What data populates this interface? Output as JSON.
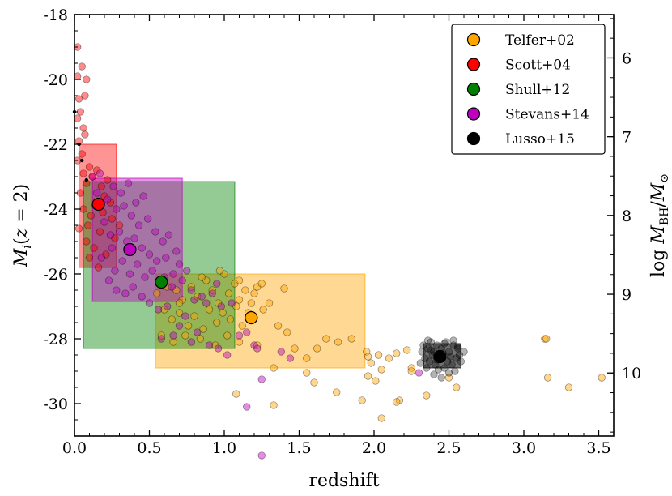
{
  "chart_data": {
    "type": "scatter",
    "xlabel": "redshift",
    "ylabel": "M_i(z = 2)",
    "ylabel_right": "log M_BH/M_sun",
    "xlim": [
      0,
      3.6
    ],
    "ylim": [
      -18,
      -31
    ],
    "right_ylim": [
      5.45,
      10.8
    ],
    "x_ticks": [
      0.0,
      0.5,
      1.0,
      1.5,
      2.0,
      2.5,
      3.0,
      3.5
    ],
    "x_tick_labels": [
      "0.0",
      "0.5",
      "1.0",
      "1.5",
      "2.0",
      "2.5",
      "3.0",
      "3.5"
    ],
    "y_ticks": [
      -18,
      -20,
      -22,
      -24,
      -26,
      -28,
      -30
    ],
    "y_tick_labels": [
      "-18",
      "-20",
      "-22",
      "-24",
      "-26",
      "-28",
      "-30"
    ],
    "right_ticks": [
      6,
      7,
      8,
      9,
      10
    ],
    "right_tick_labels": [
      "6",
      "7",
      "8",
      "9",
      "10"
    ],
    "legend_position": "top-right",
    "series": [
      {
        "name": "Telfer+02",
        "color": "#ffa500",
        "box": {
          "x": [
            0.54,
            1.94
          ],
          "y": [
            -26.0,
            -28.9
          ]
        },
        "median": {
          "x": 1.18,
          "y": -27.35
        },
        "points": [
          [
            0.55,
            -26.6
          ],
          [
            0.62,
            -26.4
          ],
          [
            0.68,
            -26.5
          ],
          [
            0.72,
            -26.8
          ],
          [
            0.78,
            -26.4
          ],
          [
            0.82,
            -26.7
          ],
          [
            0.88,
            -26.2
          ],
          [
            0.92,
            -26.5
          ],
          [
            0.96,
            -26.9
          ],
          [
            1.0,
            -26.0
          ],
          [
            1.03,
            -26.6
          ],
          [
            1.07,
            -26.3
          ],
          [
            1.1,
            -26.8
          ],
          [
            1.14,
            -26.5
          ],
          [
            1.18,
            -26.9
          ],
          [
            1.22,
            -26.4
          ],
          [
            0.6,
            -27.1
          ],
          [
            0.65,
            -27.4
          ],
          [
            0.7,
            -27.2
          ],
          [
            0.76,
            -27.6
          ],
          [
            0.8,
            -27.3
          ],
          [
            0.86,
            -27.7
          ],
          [
            0.9,
            -27.1
          ],
          [
            0.95,
            -27.5
          ],
          [
            0.99,
            -27.2
          ],
          [
            1.04,
            -27.4
          ],
          [
            1.08,
            -27.0
          ],
          [
            1.12,
            -27.6
          ],
          [
            1.16,
            -27.2
          ],
          [
            1.26,
            -27.1
          ],
          [
            1.3,
            -26.9
          ],
          [
            0.58,
            -27.9
          ],
          [
            0.66,
            -28.1
          ],
          [
            0.74,
            -27.9
          ],
          [
            0.84,
            -28.0
          ],
          [
            0.94,
            -28.2
          ],
          [
            1.02,
            -27.9
          ],
          [
            1.1,
            -28.1
          ],
          [
            1.22,
            -28.2
          ],
          [
            1.36,
            -27.6
          ],
          [
            1.42,
            -27.8
          ],
          [
            1.47,
            -28.3
          ],
          [
            1.55,
            -28.6
          ],
          [
            1.62,
            -28.3
          ],
          [
            0.85,
            -26.1
          ],
          [
            0.97,
            -25.9
          ],
          [
            1.1,
            -26.2
          ],
          [
            1.2,
            -26.6
          ],
          [
            1.25,
            -26.3
          ],
          [
            1.4,
            -26.45
          ],
          [
            0.7,
            -26.9
          ],
          [
            1.33,
            -28.9
          ],
          [
            1.68,
            -28.0
          ],
          [
            1.76,
            -28.1
          ],
          [
            1.85,
            -28.0
          ],
          [
            1.95,
            -28.4
          ],
          [
            1.96,
            -28.55
          ],
          [
            1.98,
            -28.75
          ],
          [
            2.03,
            -28.5
          ],
          [
            2.05,
            -28.95
          ],
          [
            2.1,
            -28.6
          ],
          [
            2.15,
            -28.45
          ],
          [
            2.22,
            -28.35
          ],
          [
            2.25,
            -28.9
          ],
          [
            1.96,
            -29.15
          ],
          [
            2.01,
            -29.3
          ],
          [
            2.17,
            -29.9
          ],
          [
            2.35,
            -29.75
          ],
          [
            2.25,
            -29.0
          ],
          [
            1.92,
            -29.9
          ],
          [
            2.05,
            -30.45
          ],
          [
            2.15,
            -29.95
          ],
          [
            1.75,
            -29.65
          ],
          [
            1.6,
            -29.35
          ],
          [
            1.55,
            -29.05
          ],
          [
            1.33,
            -30.05
          ],
          [
            1.08,
            -29.7
          ],
          [
            3.14,
            -28.0
          ],
          [
            3.15,
            -28.0
          ],
          [
            3.16,
            -29.2
          ],
          [
            3.3,
            -29.5
          ],
          [
            3.52,
            -29.2
          ],
          [
            2.55,
            -29.5
          ],
          [
            2.5,
            -29.2
          ]
        ]
      },
      {
        "name": "Scott+04",
        "color": "#ff0000",
        "box": {
          "x": [
            0.03,
            0.28
          ],
          "y": [
            -22.0,
            -25.8
          ]
        },
        "median": {
          "x": 0.16,
          "y": -23.85
        },
        "points": [
          [
            0.02,
            -19.0
          ],
          [
            0.02,
            -19.9
          ],
          [
            0.03,
            -20.6
          ],
          [
            0.05,
            -19.6
          ],
          [
            0.07,
            -20.5
          ],
          [
            0.08,
            -20.0
          ],
          [
            0.02,
            -21.2
          ],
          [
            0.04,
            -21.0
          ],
          [
            0.06,
            -21.5
          ],
          [
            0.03,
            -21.9
          ],
          [
            0.07,
            -21.7
          ],
          [
            0.02,
            -22.5
          ],
          [
            0.05,
            -22.3
          ],
          [
            0.06,
            -22.9
          ],
          [
            0.08,
            -23.2
          ],
          [
            0.1,
            -22.7
          ],
          [
            0.12,
            -23.0
          ],
          [
            0.15,
            -22.8
          ],
          [
            0.18,
            -23.3
          ],
          [
            0.2,
            -23.6
          ],
          [
            0.22,
            -23.1
          ],
          [
            0.14,
            -23.9
          ],
          [
            0.11,
            -24.2
          ],
          [
            0.09,
            -24.5
          ],
          [
            0.17,
            -24.7
          ],
          [
            0.19,
            -24.1
          ],
          [
            0.13,
            -25.2
          ],
          [
            0.25,
            -24.3
          ],
          [
            0.27,
            -24.9
          ],
          [
            0.21,
            -25.4
          ],
          [
            0.16,
            -25.8
          ],
          [
            0.24,
            -23.8
          ],
          [
            0.04,
            -23.5
          ],
          [
            0.06,
            -24.0
          ],
          [
            0.08,
            -25.0
          ],
          [
            0.03,
            -24.6
          ],
          [
            0.1,
            -25.5
          ],
          [
            0.3,
            -24.5
          ]
        ]
      },
      {
        "name": "Shull+12",
        "color": "#008000",
        "box": {
          "x": [
            0.06,
            1.07
          ],
          "y": [
            -23.15,
            -28.3
          ]
        },
        "median": {
          "x": 0.58,
          "y": -26.25
        },
        "points": []
      },
      {
        "name": "Stevans+14",
        "color": "#bf00bf",
        "box": {
          "x": [
            0.12,
            0.72
          ],
          "y": [
            -23.05,
            -26.85
          ]
        },
        "median": {
          "x": 0.37,
          "y": -25.25
        },
        "points": [
          [
            0.15,
            -23.5
          ],
          [
            0.22,
            -23.7
          ],
          [
            0.28,
            -24.0
          ],
          [
            0.33,
            -23.9
          ],
          [
            0.38,
            -24.2
          ],
          [
            0.43,
            -24.5
          ],
          [
            0.49,
            -24.3
          ],
          [
            0.54,
            -24.7
          ],
          [
            0.59,
            -25.0
          ],
          [
            0.63,
            -24.8
          ],
          [
            0.68,
            -25.3
          ],
          [
            0.7,
            -25.7
          ],
          [
            0.66,
            -26.0
          ],
          [
            0.61,
            -25.5
          ],
          [
            0.57,
            -26.3
          ],
          [
            0.52,
            -25.9
          ],
          [
            0.47,
            -26.1
          ],
          [
            0.42,
            -25.7
          ],
          [
            0.37,
            -26.0
          ],
          [
            0.32,
            -25.6
          ],
          [
            0.27,
            -25.9
          ],
          [
            0.25,
            -25.2
          ],
          [
            0.3,
            -24.7
          ],
          [
            0.35,
            -25.0
          ],
          [
            0.4,
            -24.9
          ],
          [
            0.45,
            -25.2
          ],
          [
            0.5,
            -25.4
          ],
          [
            0.55,
            -25.6
          ],
          [
            0.6,
            -26.1
          ],
          [
            0.65,
            -26.4
          ],
          [
            0.72,
            -26.2
          ],
          [
            0.75,
            -25.9
          ],
          [
            0.78,
            -26.5
          ],
          [
            0.8,
            -26.8
          ],
          [
            0.85,
            -26.7
          ],
          [
            0.88,
            -26.9
          ],
          [
            0.92,
            -26.6
          ],
          [
            0.95,
            -26.3
          ],
          [
            0.98,
            -27.0
          ],
          [
            0.2,
            -24.4
          ],
          [
            0.24,
            -24.8
          ],
          [
            0.18,
            -25.5
          ],
          [
            0.23,
            -26.2
          ],
          [
            0.28,
            -26.5
          ],
          [
            0.34,
            -26.6
          ],
          [
            0.39,
            -26.4
          ],
          [
            0.45,
            -26.7
          ],
          [
            0.5,
            -26.9
          ],
          [
            0.56,
            -27.1
          ],
          [
            0.62,
            -27.0
          ],
          [
            0.7,
            -27.6
          ],
          [
            0.74,
            -27.3
          ],
          [
            0.82,
            -27.8
          ],
          [
            0.9,
            -28.2
          ],
          [
            0.96,
            -28.3
          ],
          [
            1.02,
            -28.5
          ],
          [
            0.78,
            -28.1
          ],
          [
            0.66,
            -27.9
          ],
          [
            0.58,
            -28.0
          ],
          [
            1.1,
            -27.9
          ],
          [
            0.12,
            -23.0
          ],
          [
            0.17,
            -22.9
          ],
          [
            0.26,
            -23.3
          ],
          [
            0.31,
            -23.5
          ],
          [
            0.36,
            -23.2
          ],
          [
            0.41,
            -23.8
          ],
          [
            0.46,
            -23.6
          ],
          [
            1.05,
            -26.9
          ],
          [
            1.15,
            -27.8
          ],
          [
            1.22,
            -28.3
          ],
          [
            1.38,
            -28.4
          ],
          [
            1.44,
            -28.6
          ],
          [
            1.15,
            -30.1
          ],
          [
            1.25,
            -31.6
          ],
          [
            2.3,
            -29.05
          ],
          [
            1.25,
            -29.25
          ],
          [
            1.2,
            -28.2
          ]
        ]
      },
      {
        "name": "Lusso+15",
        "color": "#000000",
        "box": {
          "x": [
            2.33,
            2.58
          ],
          "y": [
            -28.15,
            -28.9
          ]
        },
        "median": {
          "x": 2.44,
          "y": -28.55
        },
        "points": [
          [
            2.33,
            -28.2
          ],
          [
            2.36,
            -28.3
          ],
          [
            2.38,
            -28.1
          ],
          [
            2.4,
            -28.4
          ],
          [
            2.42,
            -28.2
          ],
          [
            2.45,
            -28.3
          ],
          [
            2.48,
            -28.1
          ],
          [
            2.5,
            -28.4
          ],
          [
            2.53,
            -28.2
          ],
          [
            2.56,
            -28.3
          ],
          [
            2.34,
            -28.6
          ],
          [
            2.37,
            -28.7
          ],
          [
            2.39,
            -28.5
          ],
          [
            2.41,
            -28.8
          ],
          [
            2.44,
            -28.6
          ],
          [
            2.47,
            -28.9
          ],
          [
            2.49,
            -28.7
          ],
          [
            2.52,
            -28.8
          ],
          [
            2.55,
            -28.6
          ],
          [
            2.57,
            -28.5
          ],
          [
            2.35,
            -28.9
          ],
          [
            2.43,
            -28.95
          ],
          [
            2.46,
            -28.45
          ],
          [
            2.51,
            -28.55
          ],
          [
            2.54,
            -29.0
          ],
          [
            2.32,
            -28.4
          ],
          [
            2.58,
            -28.7
          ],
          [
            2.4,
            -29.1
          ],
          [
            2.45,
            -29.2
          ],
          [
            2.5,
            -29.05
          ],
          [
            2.38,
            -28.35
          ],
          [
            2.56,
            -28.25
          ],
          [
            2.42,
            -28.65
          ],
          [
            2.47,
            -28.15
          ],
          [
            2.36,
            -28.05
          ],
          [
            2.53,
            -28.05
          ],
          [
            2.6,
            -28.4
          ],
          [
            2.31,
            -28.75
          ]
        ]
      }
    ],
    "highlight_points": [
      [
        0.0,
        -21.0
      ],
      [
        0.03,
        -22.0
      ],
      [
        0.05,
        -22.5
      ],
      [
        0.08,
        -23.1
      ]
    ]
  }
}
